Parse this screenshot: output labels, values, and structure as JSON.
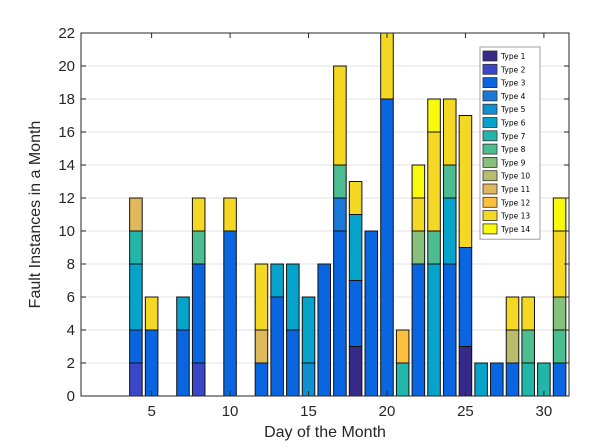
{
  "chart_data": {
    "type": "bar",
    "stacked": true,
    "title": "",
    "xlabel": "Day of the Month",
    "ylabel": "Fault Instances in a Month",
    "xlim": [
      0.5,
      31.6
    ],
    "ylim": [
      0,
      22
    ],
    "xticks": [
      5,
      10,
      15,
      20,
      25,
      30
    ],
    "yticks": [
      0,
      2,
      4,
      6,
      8,
      10,
      12,
      14,
      16,
      18,
      20,
      22
    ],
    "grid": "horizontal",
    "legend_position": "top-right",
    "categories": [
      1,
      2,
      3,
      4,
      5,
      6,
      7,
      8,
      9,
      10,
      11,
      12,
      13,
      14,
      15,
      16,
      17,
      18,
      19,
      20,
      21,
      22,
      23,
      24,
      25,
      26,
      27,
      28,
      29,
      30,
      31
    ],
    "series": [
      {
        "name": "Type 1",
        "color": "#352a87",
        "values": [
          0,
          0,
          0,
          0,
          0,
          0,
          0,
          0,
          0,
          0,
          0,
          0,
          0,
          0,
          0,
          0,
          0,
          3,
          0,
          0,
          0,
          0,
          0,
          0,
          3,
          0,
          0,
          0,
          0,
          0,
          0
        ]
      },
      {
        "name": "Type 2",
        "color": "#3a47c8",
        "values": [
          0,
          0,
          0,
          2,
          0,
          0,
          0,
          2,
          0,
          0,
          0,
          0,
          0,
          0,
          0,
          0,
          0,
          0,
          0,
          0,
          0,
          0,
          0,
          0,
          0,
          0,
          0,
          0,
          0,
          0,
          0
        ]
      },
      {
        "name": "Type 3",
        "color": "#0966e0",
        "values": [
          0,
          0,
          0,
          2,
          4,
          0,
          4,
          6,
          0,
          10,
          0,
          2,
          6,
          4,
          0,
          8,
          10,
          4,
          10,
          18,
          0,
          8,
          0,
          8,
          6,
          0,
          2,
          2,
          0,
          0,
          2
        ]
      },
      {
        "name": "Type 4",
        "color": "#1a78d8",
        "values": [
          0,
          0,
          0,
          0,
          0,
          0,
          0,
          0,
          0,
          0,
          0,
          0,
          0,
          0,
          0,
          0,
          2,
          0,
          0,
          0,
          0,
          0,
          0,
          0,
          0,
          0,
          0,
          0,
          0,
          0,
          0
        ]
      },
      {
        "name": "Type 5",
        "color": "#1090d2",
        "values": [
          0,
          0,
          0,
          0,
          0,
          0,
          0,
          0,
          0,
          0,
          0,
          0,
          0,
          0,
          2,
          0,
          0,
          0,
          0,
          0,
          0,
          0,
          0,
          0,
          0,
          0,
          0,
          0,
          0,
          0,
          0
        ]
      },
      {
        "name": "Type 6",
        "color": "#06a4ca",
        "values": [
          0,
          0,
          0,
          4,
          0,
          0,
          2,
          0,
          0,
          0,
          0,
          0,
          2,
          4,
          4,
          0,
          0,
          4,
          0,
          0,
          0,
          0,
          8,
          4,
          0,
          2,
          0,
          0,
          0,
          0,
          0
        ]
      },
      {
        "name": "Type 7",
        "color": "#22b5aa",
        "values": [
          0,
          0,
          0,
          2,
          0,
          0,
          0,
          0,
          0,
          0,
          0,
          0,
          0,
          0,
          0,
          0,
          0,
          0,
          0,
          0,
          2,
          0,
          0,
          0,
          0,
          0,
          0,
          0,
          2,
          2,
          0
        ]
      },
      {
        "name": "Type 8",
        "color": "#4bbd90",
        "values": [
          0,
          0,
          0,
          0,
          0,
          0,
          0,
          2,
          0,
          0,
          0,
          0,
          0,
          0,
          0,
          0,
          2,
          0,
          0,
          0,
          0,
          0,
          2,
          2,
          0,
          0,
          0,
          0,
          2,
          0,
          2
        ]
      },
      {
        "name": "Type 9",
        "color": "#86c07a",
        "values": [
          0,
          0,
          0,
          0,
          0,
          0,
          0,
          0,
          0,
          0,
          0,
          0,
          0,
          0,
          0,
          0,
          0,
          0,
          0,
          0,
          0,
          2,
          0,
          0,
          0,
          0,
          0,
          0,
          0,
          0,
          2
        ]
      },
      {
        "name": "Type 10",
        "color": "#b9bc6a",
        "values": [
          0,
          0,
          0,
          0,
          0,
          0,
          0,
          0,
          0,
          0,
          0,
          0,
          0,
          0,
          0,
          0,
          0,
          0,
          0,
          0,
          0,
          0,
          0,
          0,
          0,
          0,
          0,
          2,
          0,
          0,
          0
        ]
      },
      {
        "name": "Type 11",
        "color": "#e0b95c",
        "values": [
          0,
          0,
          0,
          2,
          0,
          0,
          0,
          0,
          0,
          0,
          0,
          2,
          0,
          0,
          0,
          0,
          0,
          0,
          0,
          0,
          0,
          0,
          0,
          0,
          0,
          0,
          0,
          0,
          0,
          0,
          0
        ]
      },
      {
        "name": "Type 12",
        "color": "#fcbf3c",
        "values": [
          0,
          0,
          0,
          0,
          0,
          0,
          0,
          0,
          0,
          0,
          0,
          0,
          0,
          0,
          0,
          0,
          0,
          0,
          0,
          0,
          2,
          0,
          0,
          0,
          0,
          0,
          0,
          0,
          0,
          0,
          0
        ]
      },
      {
        "name": "Type 13",
        "color": "#f5d823",
        "values": [
          0,
          0,
          0,
          0,
          2,
          0,
          0,
          2,
          0,
          2,
          0,
          4,
          0,
          0,
          0,
          0,
          6,
          2,
          0,
          4,
          0,
          2,
          6,
          4,
          8,
          0,
          0,
          2,
          2,
          0,
          4
        ]
      },
      {
        "name": "Type 14",
        "color": "#f9f90e",
        "values": [
          0,
          0,
          0,
          0,
          0,
          0,
          0,
          0,
          0,
          0,
          0,
          0,
          0,
          0,
          0,
          0,
          0,
          0,
          0,
          0,
          0,
          2,
          2,
          0,
          0,
          0,
          0,
          0,
          0,
          0,
          2
        ]
      }
    ]
  }
}
